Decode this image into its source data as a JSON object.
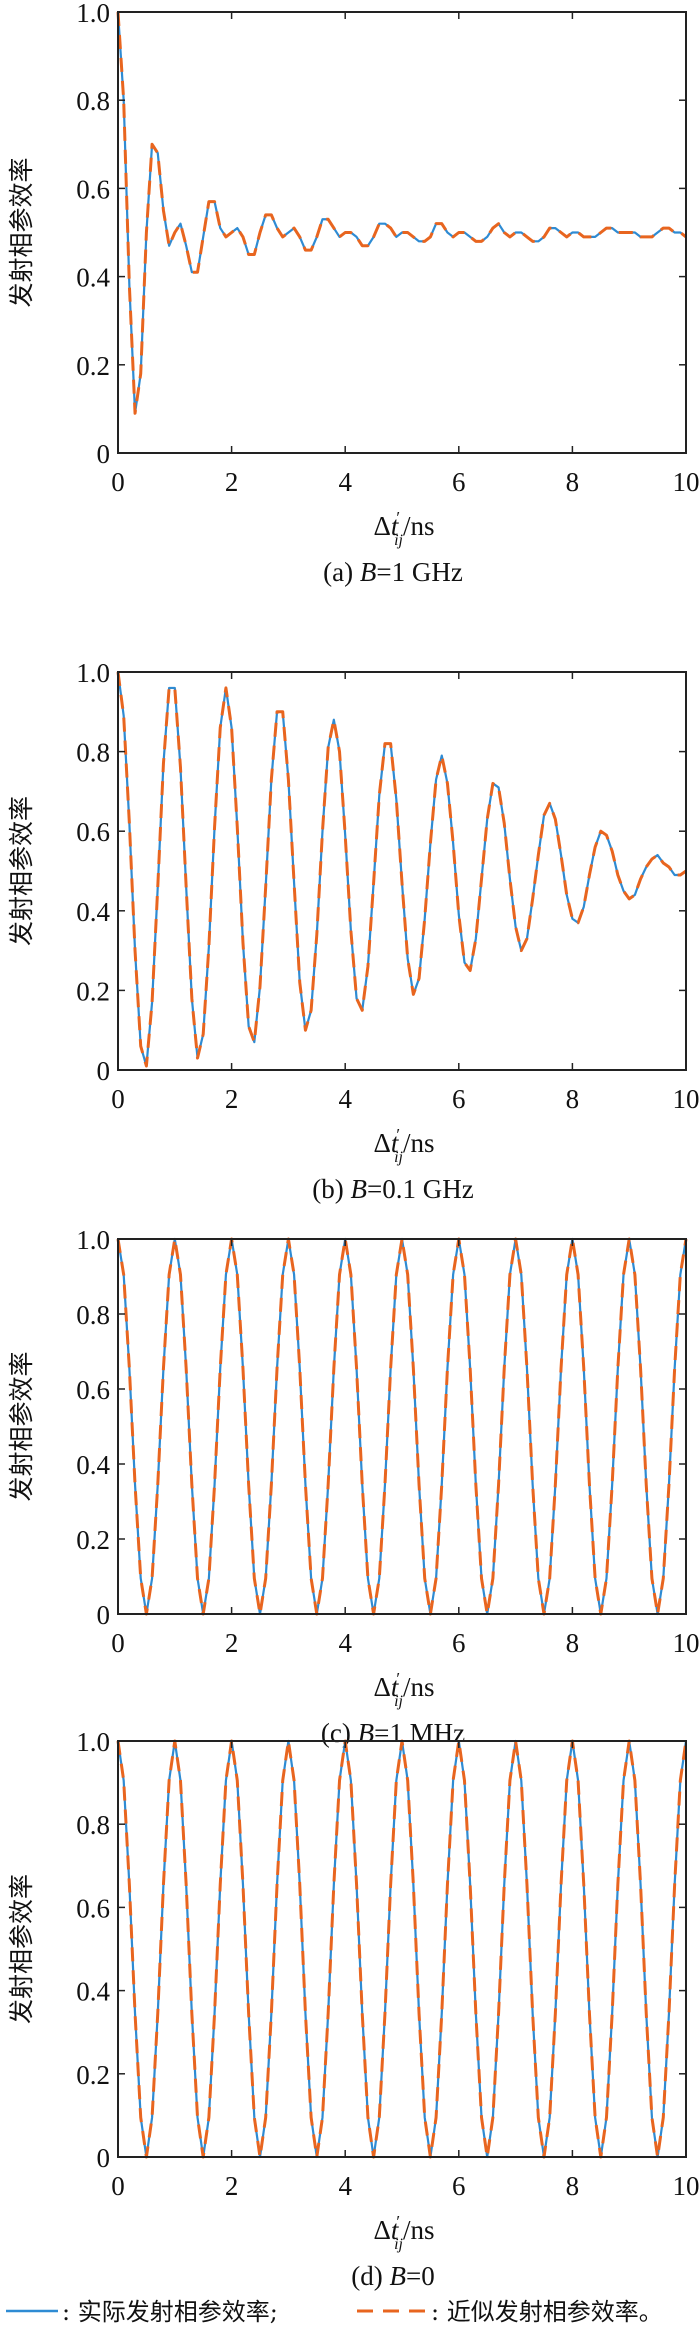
{
  "colors": {
    "actual": "#2e8bd3",
    "approx": "#e8651f",
    "axis": "#222222"
  },
  "legend": {
    "actual_label": ": 实际发射相参效率;",
    "approx_label": ": 近似发射相参效率。"
  },
  "chart_data": [
    {
      "type": "line",
      "caption": {
        "prefix": "(a) ",
        "var": "B",
        "suffix": "=1 GHz"
      },
      "ylabel": "发射相参效率",
      "xlabel": {
        "delta": "Δ",
        "var": "t",
        "prime": "′",
        "sub": "ij",
        "unit": "/ns"
      },
      "xlim": [
        0,
        10
      ],
      "ylim": [
        0,
        1
      ],
      "xticks": [
        0,
        2,
        4,
        6,
        8,
        10
      ],
      "xtick_labels": [
        "0",
        "2",
        "4",
        "6",
        "8",
        "10"
      ],
      "yticks": [
        0,
        0.2,
        0.4,
        0.6,
        0.8,
        1.0
      ],
      "ytick_labels": [
        "0",
        "0.2",
        "0.4",
        "0.6",
        "0.8",
        "1.0"
      ],
      "x_start": 0,
      "x_step": 0.1,
      "series": [
        {
          "name": "实际发射相参效率",
          "style": "solid",
          "values": [
            1.0,
            0.8,
            0.38,
            0.09,
            0.18,
            0.5,
            0.7,
            0.68,
            0.55,
            0.47,
            0.5,
            0.52,
            0.47,
            0.41,
            0.41,
            0.49,
            0.57,
            0.57,
            0.51,
            0.49,
            0.5,
            0.51,
            0.49,
            0.45,
            0.45,
            0.5,
            0.54,
            0.54,
            0.51,
            0.49,
            0.5,
            0.51,
            0.49,
            0.46,
            0.46,
            0.49,
            0.53,
            0.53,
            0.51,
            0.49,
            0.5,
            0.5,
            0.49,
            0.47,
            0.47,
            0.49,
            0.52,
            0.52,
            0.51,
            0.49,
            0.5,
            0.5,
            0.49,
            0.48,
            0.48,
            0.49,
            0.52,
            0.52,
            0.5,
            0.49,
            0.5,
            0.5,
            0.49,
            0.48,
            0.48,
            0.49,
            0.51,
            0.52,
            0.5,
            0.49,
            0.5,
            0.5,
            0.49,
            0.48,
            0.48,
            0.49,
            0.51,
            0.51,
            0.5,
            0.49,
            0.5,
            0.5,
            0.49,
            0.49,
            0.49,
            0.5,
            0.51,
            0.51,
            0.5,
            0.5,
            0.5,
            0.5,
            0.49,
            0.49,
            0.49,
            0.5,
            0.51,
            0.51,
            0.5,
            0.5,
            0.49
          ]
        },
        {
          "name": "近似发射相参效率",
          "style": "dashed",
          "values": [
            1.0,
            0.8,
            0.38,
            0.09,
            0.18,
            0.5,
            0.7,
            0.68,
            0.55,
            0.47,
            0.5,
            0.52,
            0.47,
            0.41,
            0.41,
            0.49,
            0.57,
            0.57,
            0.51,
            0.49,
            0.5,
            0.51,
            0.49,
            0.45,
            0.45,
            0.5,
            0.54,
            0.54,
            0.51,
            0.49,
            0.5,
            0.51,
            0.49,
            0.46,
            0.46,
            0.49,
            0.53,
            0.53,
            0.51,
            0.49,
            0.5,
            0.5,
            0.49,
            0.47,
            0.47,
            0.49,
            0.52,
            0.52,
            0.51,
            0.49,
            0.5,
            0.5,
            0.49,
            0.48,
            0.48,
            0.49,
            0.52,
            0.52,
            0.5,
            0.49,
            0.5,
            0.5,
            0.49,
            0.48,
            0.48,
            0.49,
            0.51,
            0.52,
            0.5,
            0.49,
            0.5,
            0.5,
            0.49,
            0.48,
            0.48,
            0.49,
            0.51,
            0.51,
            0.5,
            0.49,
            0.5,
            0.5,
            0.49,
            0.49,
            0.49,
            0.5,
            0.51,
            0.51,
            0.5,
            0.5,
            0.5,
            0.5,
            0.49,
            0.49,
            0.49,
            0.5,
            0.51,
            0.51,
            0.5,
            0.5,
            0.49
          ]
        }
      ]
    },
    {
      "type": "line",
      "caption": {
        "prefix": "(b) ",
        "var": "B",
        "suffix": "=0.1 GHz"
      },
      "ylabel": "发射相参效率",
      "xlabel": {
        "delta": "Δ",
        "var": "t",
        "prime": "′",
        "sub": "ij",
        "unit": "/ns"
      },
      "xlim": [
        0,
        10
      ],
      "ylim": [
        0,
        1
      ],
      "xticks": [
        0,
        2,
        4,
        6,
        8,
        10
      ],
      "xtick_labels": [
        "0",
        "2",
        "4",
        "6",
        "8",
        "10"
      ],
      "yticks": [
        0,
        0.2,
        0.4,
        0.6,
        0.8,
        1.0
      ],
      "ytick_labels": [
        "0",
        "0.2",
        "0.4",
        "0.6",
        "0.8",
        "1.0"
      ],
      "x_start": 0,
      "x_step": 0.1,
      "series": [
        {
          "name": "实际发射相参效率",
          "style": "solid",
          "values": [
            1.0,
            0.89,
            0.62,
            0.3,
            0.06,
            0.01,
            0.17,
            0.46,
            0.77,
            0.96,
            0.96,
            0.76,
            0.46,
            0.18,
            0.03,
            0.09,
            0.31,
            0.61,
            0.86,
            0.96,
            0.86,
            0.61,
            0.32,
            0.11,
            0.07,
            0.21,
            0.46,
            0.73,
            0.9,
            0.9,
            0.73,
            0.47,
            0.22,
            0.1,
            0.15,
            0.34,
            0.6,
            0.81,
            0.88,
            0.8,
            0.59,
            0.35,
            0.18,
            0.15,
            0.26,
            0.47,
            0.69,
            0.82,
            0.82,
            0.68,
            0.47,
            0.28,
            0.19,
            0.23,
            0.38,
            0.57,
            0.73,
            0.79,
            0.72,
            0.57,
            0.39,
            0.27,
            0.25,
            0.33,
            0.48,
            0.63,
            0.72,
            0.71,
            0.62,
            0.48,
            0.36,
            0.3,
            0.33,
            0.43,
            0.54,
            0.64,
            0.67,
            0.63,
            0.54,
            0.44,
            0.38,
            0.37,
            0.41,
            0.49,
            0.56,
            0.6,
            0.59,
            0.55,
            0.49,
            0.45,
            0.43,
            0.44,
            0.48,
            0.51,
            0.53,
            0.54,
            0.52,
            0.51,
            0.49,
            0.49,
            0.5
          ]
        },
        {
          "name": "近似发射相参效率",
          "style": "dashed",
          "values": [
            1.0,
            0.89,
            0.62,
            0.3,
            0.06,
            0.01,
            0.17,
            0.46,
            0.77,
            0.96,
            0.96,
            0.76,
            0.46,
            0.18,
            0.03,
            0.09,
            0.31,
            0.61,
            0.86,
            0.96,
            0.86,
            0.61,
            0.32,
            0.11,
            0.07,
            0.21,
            0.46,
            0.73,
            0.9,
            0.9,
            0.73,
            0.47,
            0.22,
            0.1,
            0.15,
            0.34,
            0.6,
            0.81,
            0.88,
            0.8,
            0.59,
            0.35,
            0.18,
            0.15,
            0.26,
            0.47,
            0.69,
            0.82,
            0.82,
            0.68,
            0.47,
            0.28,
            0.19,
            0.23,
            0.38,
            0.57,
            0.73,
            0.79,
            0.72,
            0.57,
            0.39,
            0.27,
            0.25,
            0.33,
            0.48,
            0.63,
            0.72,
            0.71,
            0.62,
            0.48,
            0.36,
            0.3,
            0.33,
            0.43,
            0.54,
            0.64,
            0.67,
            0.63,
            0.54,
            0.44,
            0.38,
            0.37,
            0.41,
            0.49,
            0.56,
            0.6,
            0.59,
            0.55,
            0.49,
            0.45,
            0.43,
            0.44,
            0.48,
            0.51,
            0.53,
            0.54,
            0.52,
            0.51,
            0.49,
            0.49,
            0.5
          ]
        }
      ]
    },
    {
      "type": "line",
      "caption": {
        "prefix": "(c) ",
        "var": "B",
        "suffix": "=1 MHz"
      },
      "ylabel": "发射相参效率",
      "xlabel": {
        "delta": "Δ",
        "var": "t",
        "prime": "′",
        "sub": "ij",
        "unit": "/ns"
      },
      "xlim": [
        0,
        10
      ],
      "ylim": [
        0,
        1
      ],
      "xticks": [
        0,
        2,
        4,
        6,
        8,
        10
      ],
      "xtick_labels": [
        "0",
        "2",
        "4",
        "6",
        "8",
        "10"
      ],
      "yticks": [
        0,
        0.2,
        0.4,
        0.6,
        0.8,
        1.0
      ],
      "ytick_labels": [
        "0",
        "0.2",
        "0.4",
        "0.6",
        "0.8",
        "1.0"
      ],
      "x_start": 0,
      "x_step": 0.1,
      "series": [
        {
          "name": "实际发射相参效率",
          "style": "solid",
          "values": [
            1,
            0.905,
            0.655,
            0.345,
            0.095,
            0,
            0.095,
            0.345,
            0.655,
            0.905,
            1,
            0.905,
            0.655,
            0.345,
            0.095,
            0,
            0.095,
            0.345,
            0.655,
            0.905,
            1,
            0.905,
            0.655,
            0.345,
            0.095,
            0,
            0.095,
            0.345,
            0.655,
            0.905,
            1,
            0.905,
            0.655,
            0.345,
            0.095,
            0,
            0.095,
            0.345,
            0.655,
            0.905,
            1,
            0.905,
            0.655,
            0.345,
            0.095,
            0,
            0.095,
            0.345,
            0.655,
            0.905,
            1,
            0.905,
            0.655,
            0.345,
            0.095,
            0,
            0.095,
            0.345,
            0.655,
            0.905,
            1,
            0.905,
            0.655,
            0.345,
            0.095,
            0,
            0.095,
            0.345,
            0.655,
            0.905,
            1,
            0.905,
            0.655,
            0.345,
            0.095,
            0,
            0.095,
            0.345,
            0.655,
            0.905,
            1,
            0.905,
            0.655,
            0.345,
            0.095,
            0,
            0.095,
            0.345,
            0.655,
            0.905,
            1,
            0.905,
            0.655,
            0.345,
            0.095,
            0,
            0.095,
            0.345,
            0.655,
            0.905,
            1
          ]
        },
        {
          "name": "近似发射相参效率",
          "style": "dashed",
          "values": [
            1,
            0.905,
            0.655,
            0.345,
            0.095,
            0,
            0.095,
            0.345,
            0.655,
            0.905,
            1,
            0.905,
            0.655,
            0.345,
            0.095,
            0,
            0.095,
            0.345,
            0.655,
            0.905,
            1,
            0.905,
            0.655,
            0.345,
            0.095,
            0,
            0.095,
            0.345,
            0.655,
            0.905,
            1,
            0.905,
            0.655,
            0.345,
            0.095,
            0,
            0.095,
            0.345,
            0.655,
            0.905,
            1,
            0.905,
            0.655,
            0.345,
            0.095,
            0,
            0.095,
            0.345,
            0.655,
            0.905,
            1,
            0.905,
            0.655,
            0.345,
            0.095,
            0,
            0.095,
            0.345,
            0.655,
            0.905,
            1,
            0.905,
            0.655,
            0.345,
            0.095,
            0,
            0.095,
            0.345,
            0.655,
            0.905,
            1,
            0.905,
            0.655,
            0.345,
            0.095,
            0,
            0.095,
            0.345,
            0.655,
            0.905,
            1,
            0.905,
            0.655,
            0.345,
            0.095,
            0,
            0.095,
            0.345,
            0.655,
            0.905,
            1,
            0.905,
            0.655,
            0.345,
            0.095,
            0,
            0.095,
            0.345,
            0.655,
            0.905,
            1
          ]
        }
      ]
    },
    {
      "type": "line",
      "caption": {
        "prefix": "(d) ",
        "var": "B",
        "suffix": "=0"
      },
      "ylabel": "发射相参效率",
      "xlabel": {
        "delta": "Δ",
        "var": "t",
        "prime": "′",
        "sub": "ij",
        "unit": "/ns"
      },
      "xlim": [
        0,
        10
      ],
      "ylim": [
        0,
        1
      ],
      "xticks": [
        0,
        2,
        4,
        6,
        8,
        10
      ],
      "xtick_labels": [
        "0",
        "2",
        "4",
        "6",
        "8",
        "10"
      ],
      "yticks": [
        0,
        0.2,
        0.4,
        0.6,
        0.8,
        1.0
      ],
      "ytick_labels": [
        "0",
        "0.2",
        "0.4",
        "0.6",
        "0.8",
        "1.0"
      ],
      "x_start": 0,
      "x_step": 0.1,
      "series": [
        {
          "name": "实际发射相参效率",
          "style": "solid",
          "values": [
            1,
            0.905,
            0.655,
            0.345,
            0.095,
            0,
            0.095,
            0.345,
            0.655,
            0.905,
            1,
            0.905,
            0.655,
            0.345,
            0.095,
            0,
            0.095,
            0.345,
            0.655,
            0.905,
            1,
            0.905,
            0.655,
            0.345,
            0.095,
            0,
            0.095,
            0.345,
            0.655,
            0.905,
            1,
            0.905,
            0.655,
            0.345,
            0.095,
            0,
            0.095,
            0.345,
            0.655,
            0.905,
            1,
            0.905,
            0.655,
            0.345,
            0.095,
            0,
            0.095,
            0.345,
            0.655,
            0.905,
            1,
            0.905,
            0.655,
            0.345,
            0.095,
            0,
            0.095,
            0.345,
            0.655,
            0.905,
            1,
            0.905,
            0.655,
            0.345,
            0.095,
            0,
            0.095,
            0.345,
            0.655,
            0.905,
            1,
            0.905,
            0.655,
            0.345,
            0.095,
            0,
            0.095,
            0.345,
            0.655,
            0.905,
            1,
            0.905,
            0.655,
            0.345,
            0.095,
            0,
            0.095,
            0.345,
            0.655,
            0.905,
            1,
            0.905,
            0.655,
            0.345,
            0.095,
            0,
            0.095,
            0.345,
            0.655,
            0.905,
            1
          ]
        },
        {
          "name": "近似发射相参效率",
          "style": "dashed",
          "values": [
            1,
            0.905,
            0.655,
            0.345,
            0.095,
            0,
            0.095,
            0.345,
            0.655,
            0.905,
            1,
            0.905,
            0.655,
            0.345,
            0.095,
            0,
            0.095,
            0.345,
            0.655,
            0.905,
            1,
            0.905,
            0.655,
            0.345,
            0.095,
            0,
            0.095,
            0.345,
            0.655,
            0.905,
            1,
            0.905,
            0.655,
            0.345,
            0.095,
            0,
            0.095,
            0.345,
            0.655,
            0.905,
            1,
            0.905,
            0.655,
            0.345,
            0.095,
            0,
            0.095,
            0.345,
            0.655,
            0.905,
            1,
            0.905,
            0.655,
            0.345,
            0.095,
            0,
            0.095,
            0.345,
            0.655,
            0.905,
            1,
            0.905,
            0.655,
            0.345,
            0.095,
            0,
            0.095,
            0.345,
            0.655,
            0.905,
            1,
            0.905,
            0.655,
            0.345,
            0.095,
            0,
            0.095,
            0.345,
            0.655,
            0.905,
            1,
            0.905,
            0.655,
            0.345,
            0.095,
            0,
            0.095,
            0.345,
            0.655,
            0.905,
            1,
            0.905,
            0.655,
            0.345,
            0.095,
            0,
            0.095,
            0.345,
            0.655,
            0.905,
            1
          ]
        }
      ]
    }
  ]
}
